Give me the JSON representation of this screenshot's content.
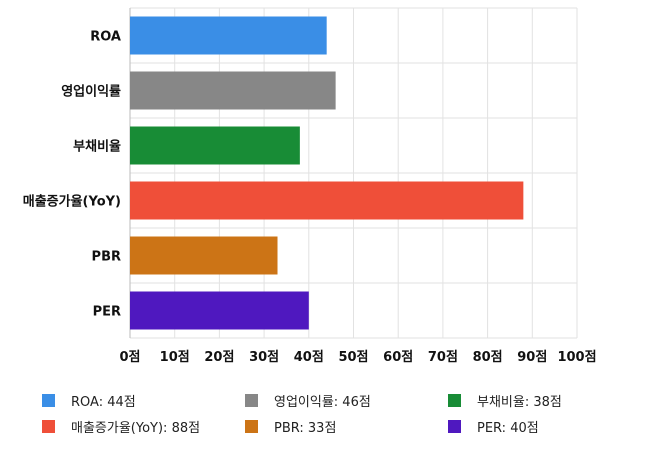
{
  "chart_data": {
    "type": "bar",
    "orientation": "horizontal",
    "categories": [
      "ROA",
      "영업이익률",
      "부채비율",
      "매출증가율(YoY)",
      "PBR",
      "PER"
    ],
    "values": [
      44,
      46,
      38,
      88,
      33,
      40
    ],
    "colors": [
      "#3a8ee6",
      "#878787",
      "#188c36",
      "#ef4f39",
      "#cc7416",
      "#4f18bf"
    ],
    "xlim": [
      0,
      100
    ],
    "x_ticks": [
      "0점",
      "10점",
      "20점",
      "30점",
      "40점",
      "50점",
      "60점",
      "70점",
      "80점",
      "90점",
      "100점"
    ],
    "grid": true,
    "legend_position": "bottom",
    "legend": [
      "ROA: 44점",
      "영업이익률: 46점",
      "부채비율: 38점",
      "매출증가율(YoY): 88점",
      "PBR: 33점",
      "PER: 40점"
    ]
  }
}
